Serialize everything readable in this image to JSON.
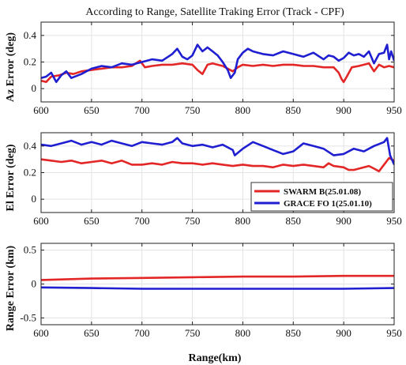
{
  "figure": {
    "title": "According to Range, Satellite Traking Error (Track - CPF)",
    "xlabel": "Range(km)"
  },
  "legend": {
    "items": [
      {
        "name": "SWARM B(25.01.08)",
        "color": "#e32626"
      },
      {
        "name": "GRACE FO 1(25.01.10)",
        "color": "#1f1fd1"
      }
    ]
  },
  "chart_data": [
    {
      "type": "line",
      "ylabel": "Az Error (deg)",
      "xlim": [
        600,
        950
      ],
      "ylim": [
        -0.1,
        0.5
      ],
      "xticks": [
        600,
        650,
        700,
        750,
        800,
        850,
        900,
        950
      ],
      "yticks": [
        0,
        0.2,
        0.4
      ],
      "ytick_labels": [
        "0",
        "0.2",
        "0.4"
      ],
      "grid": true,
      "series": [
        {
          "name": "SWARM B(25.01.08)",
          "color": "#e32626",
          "x": [
            600,
            605,
            610,
            618,
            625,
            632,
            640,
            650,
            660,
            670,
            680,
            690,
            698,
            703,
            710,
            720,
            730,
            740,
            750,
            755,
            760,
            765,
            770,
            775,
            780,
            785,
            790,
            795,
            800,
            810,
            820,
            830,
            840,
            850,
            860,
            870,
            880,
            890,
            895,
            898,
            900,
            903,
            908,
            915,
            925,
            930,
            935,
            940,
            945,
            950
          ],
          "y": [
            0.06,
            0.05,
            0.09,
            0.1,
            0.12,
            0.11,
            0.13,
            0.14,
            0.15,
            0.16,
            0.16,
            0.17,
            0.21,
            0.16,
            0.17,
            0.18,
            0.18,
            0.19,
            0.18,
            0.14,
            0.11,
            0.18,
            0.19,
            0.18,
            0.17,
            0.15,
            0.13,
            0.16,
            0.18,
            0.17,
            0.18,
            0.17,
            0.18,
            0.18,
            0.17,
            0.17,
            0.16,
            0.16,
            0.12,
            0.07,
            0.05,
            0.09,
            0.16,
            0.17,
            0.19,
            0.13,
            0.18,
            0.16,
            0.17,
            0.16
          ]
        },
        {
          "name": "GRACE FO 1(25.01.10)",
          "color": "#1f1fd1",
          "x": [
            600,
            605,
            610,
            615,
            620,
            625,
            630,
            640,
            650,
            660,
            670,
            680,
            690,
            700,
            710,
            720,
            730,
            735,
            740,
            745,
            750,
            755,
            760,
            765,
            770,
            775,
            780,
            785,
            788,
            792,
            795,
            800,
            805,
            810,
            815,
            820,
            830,
            840,
            850,
            860,
            870,
            880,
            885,
            890,
            895,
            900,
            905,
            910,
            915,
            920,
            925,
            930,
            935,
            940,
            943,
            945,
            947,
            950
          ],
          "y": [
            0.08,
            0.09,
            0.12,
            0.05,
            0.1,
            0.13,
            0.08,
            0.11,
            0.15,
            0.17,
            0.16,
            0.19,
            0.18,
            0.2,
            0.22,
            0.21,
            0.26,
            0.3,
            0.24,
            0.22,
            0.25,
            0.33,
            0.28,
            0.31,
            0.28,
            0.25,
            0.2,
            0.14,
            0.08,
            0.12,
            0.22,
            0.27,
            0.3,
            0.28,
            0.27,
            0.26,
            0.25,
            0.28,
            0.26,
            0.24,
            0.27,
            0.22,
            0.25,
            0.24,
            0.21,
            0.23,
            0.27,
            0.25,
            0.26,
            0.24,
            0.28,
            0.19,
            0.26,
            0.27,
            0.33,
            0.22,
            0.28,
            0.21
          ]
        }
      ]
    },
    {
      "type": "line",
      "ylabel": "El Error (deg)",
      "xlim": [
        600,
        950
      ],
      "ylim": [
        -0.1,
        0.5
      ],
      "xticks": [
        600,
        650,
        700,
        750,
        800,
        850,
        900,
        950
      ],
      "yticks": [
        0,
        0.2,
        0.4
      ],
      "ytick_labels": [
        "0",
        "0.2",
        "0.4"
      ],
      "grid": true,
      "legend_position": "lower-right",
      "series": [
        {
          "name": "SWARM B(25.01.08)",
          "color": "#e32626",
          "x": [
            600,
            610,
            620,
            630,
            640,
            650,
            660,
            670,
            680,
            690,
            700,
            710,
            720,
            730,
            740,
            750,
            760,
            770,
            780,
            790,
            800,
            810,
            820,
            830,
            840,
            850,
            860,
            870,
            880,
            885,
            890,
            900,
            905,
            910,
            920,
            925,
            930,
            935,
            940,
            945,
            950
          ],
          "y": [
            0.3,
            0.29,
            0.28,
            0.29,
            0.27,
            0.28,
            0.29,
            0.27,
            0.29,
            0.26,
            0.26,
            0.27,
            0.26,
            0.28,
            0.27,
            0.27,
            0.26,
            0.27,
            0.26,
            0.25,
            0.26,
            0.25,
            0.25,
            0.24,
            0.26,
            0.25,
            0.26,
            0.25,
            0.24,
            0.27,
            0.25,
            0.24,
            0.22,
            0.22,
            0.24,
            0.25,
            0.23,
            0.21,
            0.26,
            0.31,
            0.29
          ]
        },
        {
          "name": "GRACE FO 1(25.01.10)",
          "color": "#1f1fd1",
          "x": [
            600,
            610,
            620,
            630,
            640,
            650,
            660,
            670,
            680,
            690,
            700,
            710,
            720,
            730,
            735,
            740,
            750,
            760,
            770,
            780,
            790,
            792,
            800,
            810,
            820,
            830,
            840,
            850,
            860,
            870,
            880,
            890,
            900,
            910,
            920,
            930,
            940,
            943,
            946,
            950
          ],
          "y": [
            0.41,
            0.4,
            0.42,
            0.44,
            0.41,
            0.43,
            0.41,
            0.44,
            0.42,
            0.4,
            0.43,
            0.42,
            0.41,
            0.43,
            0.46,
            0.42,
            0.4,
            0.41,
            0.39,
            0.41,
            0.37,
            0.33,
            0.38,
            0.43,
            0.4,
            0.37,
            0.34,
            0.36,
            0.42,
            0.4,
            0.38,
            0.33,
            0.34,
            0.38,
            0.36,
            0.4,
            0.43,
            0.46,
            0.33,
            0.26
          ]
        }
      ]
    },
    {
      "type": "line",
      "ylabel": "Range Error (km)",
      "xlim": [
        600,
        950
      ],
      "ylim": [
        -0.6,
        0.6
      ],
      "xticks": [
        600,
        650,
        700,
        750,
        800,
        850,
        900,
        950
      ],
      "yticks": [
        -0.5,
        0,
        0.5
      ],
      "ytick_labels": [
        "-0.5",
        "0",
        "0.5"
      ],
      "grid": true,
      "series": [
        {
          "name": "SWARM B(25.01.08)",
          "color": "#e32626",
          "x": [
            600,
            650,
            700,
            750,
            800,
            850,
            900,
            950
          ],
          "y": [
            0.06,
            0.08,
            0.09,
            0.1,
            0.11,
            0.11,
            0.12,
            0.12
          ]
        },
        {
          "name": "GRACE FO 1(25.01.10)",
          "color": "#1f1fd1",
          "x": [
            600,
            650,
            700,
            750,
            800,
            850,
            900,
            950
          ],
          "y": [
            -0.05,
            -0.06,
            -0.07,
            -0.07,
            -0.07,
            -0.07,
            -0.07,
            -0.06
          ]
        }
      ]
    }
  ]
}
